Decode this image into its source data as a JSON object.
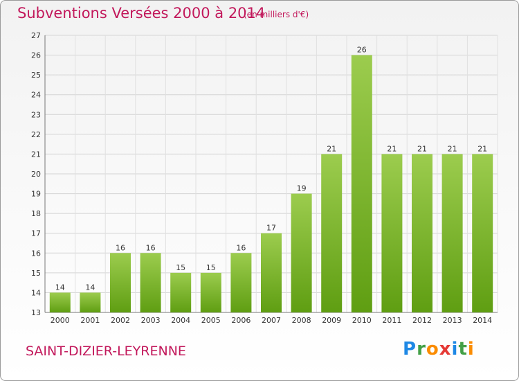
{
  "header": {
    "title": "Subventions Versées 2000 à 2014",
    "subtitle": "(en milliers d'€)"
  },
  "footer": {
    "commune": "SAINT-DIZIER-LEYRENNE",
    "logo": {
      "letters": [
        "P",
        "r",
        "o",
        "x",
        "i",
        "t",
        "i"
      ],
      "colors": [
        "#1e88e5",
        "#43a047",
        "#fb8c00",
        "#e53935",
        "#1e88e5",
        "#43a047",
        "#fb8c00"
      ]
    }
  },
  "chart_data": {
    "type": "bar",
    "title": "Subventions Versées 2000 à 2014",
    "categories": [
      "2000",
      "2001",
      "2002",
      "2003",
      "2004",
      "2005",
      "2006",
      "2007",
      "2008",
      "2009",
      "2010",
      "2011",
      "2012",
      "2013",
      "2014"
    ],
    "values": [
      14,
      14,
      16,
      16,
      15,
      15,
      16,
      17,
      19,
      21,
      26,
      21,
      21,
      21,
      21
    ],
    "ylim": [
      13,
      27
    ],
    "yticks": [
      13,
      14,
      15,
      16,
      17,
      18,
      19,
      20,
      21,
      22,
      23,
      24,
      25,
      26,
      27
    ],
    "grid": true,
    "bar_color": "#7cbb2c"
  }
}
